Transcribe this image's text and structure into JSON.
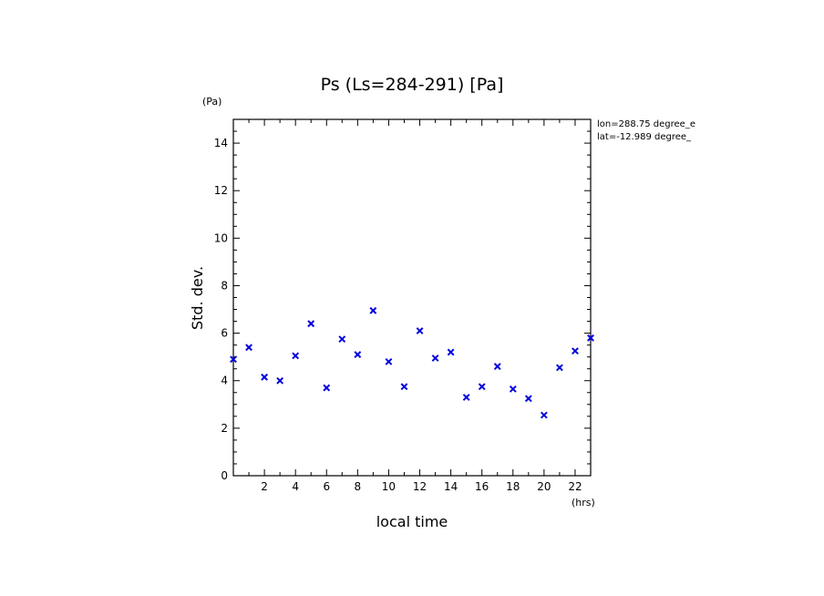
{
  "chart_data": {
    "type": "scatter",
    "title": "Ps (Ls=284-291) [Pa]",
    "xlabel": "local time",
    "ylabel": "Std. dev.",
    "x_unit": "(hrs)",
    "y_unit": "(Pa)",
    "xlim": [
      0,
      23
    ],
    "ylim": [
      0,
      15
    ],
    "x_ticks": [
      2,
      4,
      6,
      8,
      10,
      12,
      14,
      16,
      18,
      20,
      22
    ],
    "y_ticks": [
      0,
      2,
      4,
      6,
      8,
      10,
      12,
      14
    ],
    "marker": "x",
    "marker_color": "#0000dd",
    "grid": false,
    "annotations": [
      "lon=288.75 degree_e",
      "lat=-12.989 degree_"
    ],
    "series": [
      {
        "x": [
          0,
          1,
          2,
          3,
          4,
          5,
          6,
          7,
          8,
          9,
          10,
          11,
          12,
          13,
          14,
          15,
          16,
          17,
          18,
          19,
          20,
          21,
          22,
          23
        ],
        "y": [
          4.9,
          5.4,
          4.15,
          4.0,
          5.05,
          6.4,
          3.7,
          5.75,
          5.1,
          6.95,
          4.8,
          3.75,
          6.1,
          4.95,
          5.2,
          3.3,
          3.75,
          4.6,
          3.65,
          3.25,
          2.55,
          4.55,
          5.25,
          5.8
        ]
      }
    ]
  }
}
